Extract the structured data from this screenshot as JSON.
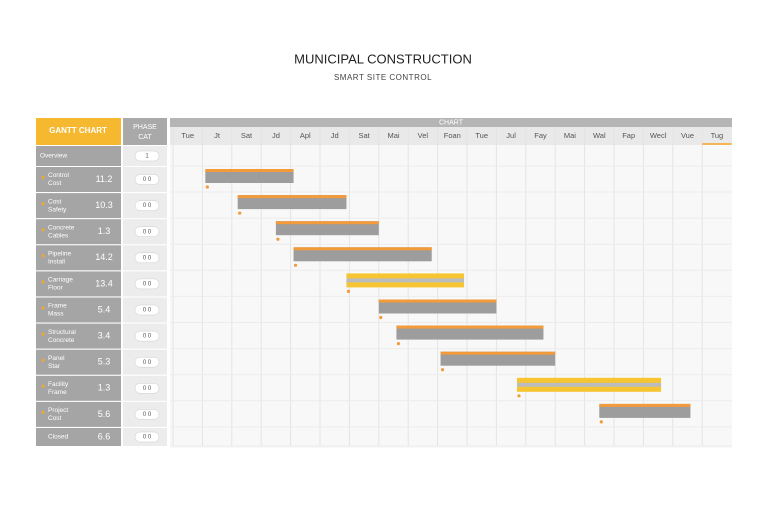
{
  "header": {
    "title": "MUNICIPAL CONSTRUCTION",
    "subtitle": "SMART SITE CONTROL"
  },
  "sidebar": {
    "title": "GANTT CHART",
    "column_title": [
      "PHASE",
      "CAT"
    ],
    "rows": [
      {
        "label": [
          "Overview"
        ],
        "badge": "1"
      },
      {
        "label": [
          "Control",
          "Cost"
        ],
        "value": 11.2,
        "badge": "0 0"
      },
      {
        "label": [
          "Cost",
          "Safety"
        ],
        "value": 10.3,
        "badge": "0 0"
      },
      {
        "label": [
          "Concrete",
          "Cables"
        ],
        "value": 1.3,
        "badge": "0 0"
      },
      {
        "label": [
          "Pipeline",
          "Install"
        ],
        "value": 14.2,
        "badge": "0 0"
      },
      {
        "label": [
          "Carriage",
          "Floor"
        ],
        "value": 13.4,
        "badge": "0 0"
      },
      {
        "label": [
          "Frame",
          "Mass"
        ],
        "value": 5.4,
        "badge": "0 0"
      },
      {
        "label": [
          "Structural",
          "Concrete"
        ],
        "value": 3.4,
        "badge": "0 0"
      },
      {
        "label": [
          "Panel",
          "Star"
        ],
        "value": 5.3,
        "badge": "0 0"
      },
      {
        "label": [
          "Facility",
          "Frame"
        ],
        "value": 1.3,
        "badge": "0 0"
      },
      {
        "label": [
          "Project",
          "Cost"
        ],
        "value": 5.6,
        "badge": "0 0"
      },
      {
        "label": [
          "Closed"
        ],
        "value": 6.6,
        "badge": "0 0"
      }
    ]
  },
  "timeline": {
    "title": "CHART",
    "columns": [
      "Tue",
      "Jt",
      "Sat",
      "Jd",
      "Apl",
      "Jd",
      "Sat",
      "Mai",
      "Vel",
      "Foan",
      "Tue",
      "Jul",
      "Fay",
      "Mai",
      "Wal",
      "Fap",
      "Wecl",
      "Vue",
      "Tug"
    ],
    "tasks": [
      {
        "start": 1.1,
        "end": 4.1,
        "highlight": false
      },
      {
        "start": 2.2,
        "end": 5.9,
        "highlight": false
      },
      {
        "start": 3.5,
        "end": 7.0,
        "highlight": false
      },
      {
        "start": 4.1,
        "end": 8.8,
        "highlight": false
      },
      {
        "start": 5.9,
        "end": 9.9,
        "highlight": true
      },
      {
        "start": 7.0,
        "end": 11.0,
        "highlight": false
      },
      {
        "start": 7.6,
        "end": 12.6,
        "highlight": false
      },
      {
        "start": 9.1,
        "end": 13.0,
        "highlight": false
      },
      {
        "start": 11.7,
        "end": 16.6,
        "highlight": true
      },
      {
        "start": 14.5,
        "end": 17.6,
        "highlight": false
      }
    ]
  }
}
